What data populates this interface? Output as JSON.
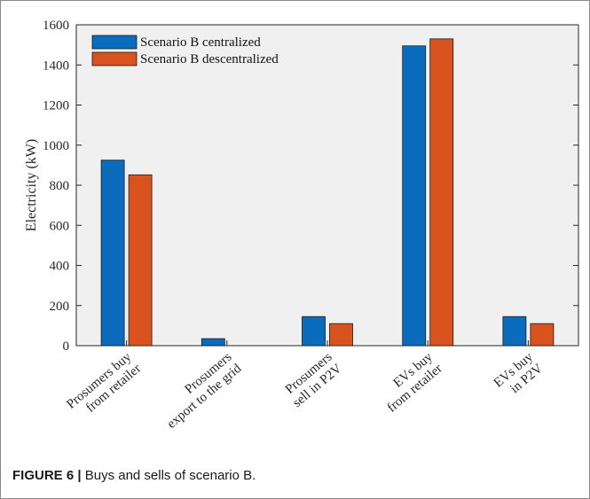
{
  "caption": {
    "label": "FIGURE 6 |",
    "text": "Buys and sells of scenario B."
  },
  "chart_data": {
    "type": "bar",
    "categories": [
      [
        "Prosumers buy",
        "from retailer"
      ],
      [
        "Prosumers",
        "export  to the grid"
      ],
      [
        "Prosumers",
        "sell in P2V"
      ],
      [
        "EVs buy",
        "from retailer"
      ],
      [
        "EVs buy",
        "in P2V"
      ]
    ],
    "series": [
      {
        "name": "Scenario B centralized",
        "values": [
          925,
          35,
          145,
          1495,
          145
        ],
        "color": "#0b6bbd"
      },
      {
        "name": "Scenario B descentralized",
        "values": [
          852,
          0,
          110,
          1530,
          110
        ],
        "color": "#d9531e"
      }
    ],
    "ylabel": "Electricity (kW)",
    "ylim": [
      0,
      1600
    ],
    "yticks": [
      0,
      200,
      400,
      600,
      800,
      1000,
      1200,
      1400,
      1600
    ],
    "legend": "top-left",
    "grid": false,
    "background": "#f0f0f0"
  }
}
